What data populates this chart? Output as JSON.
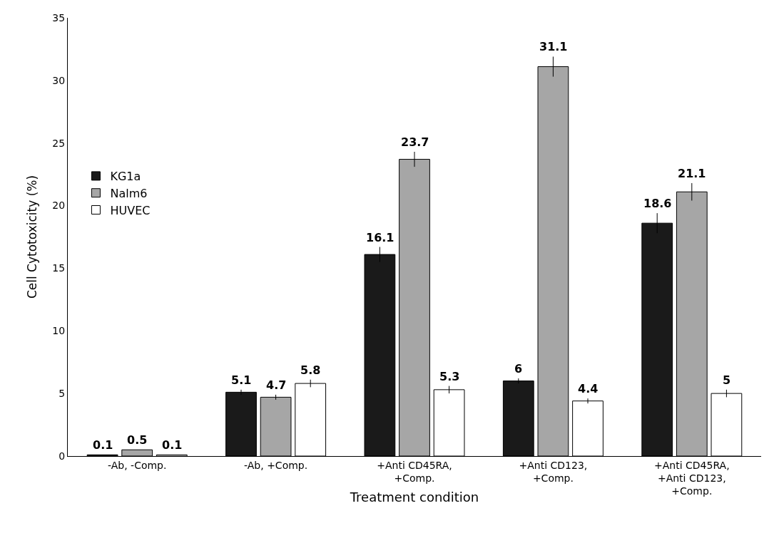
{
  "chart_data": {
    "type": "bar",
    "xlabel": "Treatment condition",
    "ylabel": "Cell Cytotoxicity (%)",
    "categories": [
      "-Ab, -Comp.",
      "-Ab, +Comp.",
      "+Anti CD45RA,\n+Comp.",
      "+Anti CD123,\n+Comp.",
      "+Anti CD45RA,\n+Anti CD123,\n+Comp."
    ],
    "series": [
      {
        "name": "KG1a",
        "color": "#1a1a1a",
        "values": [
          0.1,
          5.1,
          16.1,
          6,
          18.6
        ],
        "errors": [
          null,
          0.2,
          0.6,
          0.2,
          0.8
        ]
      },
      {
        "name": "Nalm6",
        "color": "#a6a6a6",
        "values": [
          0.5,
          4.7,
          23.7,
          31.1,
          21.1
        ],
        "errors": [
          null,
          0.2,
          0.6,
          0.8,
          0.7
        ]
      },
      {
        "name": "HUVEC",
        "color": "#ffffff",
        "values": [
          0.1,
          5.8,
          5.3,
          4.4,
          5
        ],
        "errors": [
          null,
          0.3,
          0.3,
          0.2,
          0.3
        ]
      }
    ],
    "ylim": [
      0,
      35
    ],
    "yticks": [
      0,
      5,
      10,
      15,
      20,
      25,
      30,
      35
    ],
    "grid": false,
    "legend": "left",
    "data_labels": true
  }
}
